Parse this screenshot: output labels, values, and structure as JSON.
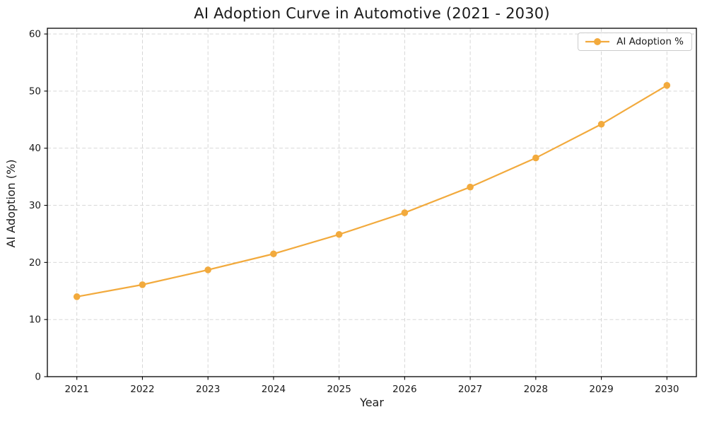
{
  "chart_data": {
    "type": "line",
    "title": "AI Adoption Curve in Automotive (2021 - 2030)",
    "xlabel": "Year",
    "ylabel": "AI Adoption (%)",
    "x": [
      2021,
      2022,
      2023,
      2024,
      2025,
      2026,
      2027,
      2028,
      2029,
      2030
    ],
    "series": [
      {
        "name": "AI Adoption %",
        "values": [
          14.0,
          16.1,
          18.7,
          21.5,
          24.9,
          28.7,
          33.2,
          38.3,
          44.2,
          51.0
        ],
        "color": "#F2AA3D",
        "marker": "circle"
      }
    ],
    "legend": [
      "AI Adoption %"
    ],
    "legend_position": "upper right",
    "ylim": [
      0,
      61
    ],
    "yticks": [
      0,
      10,
      20,
      30,
      40,
      50,
      60
    ],
    "grid": true,
    "grid_style": "dashed",
    "grid_color": "#d2d2d2",
    "axis_color": "#000000",
    "tick_label_color": "#1a1a1a",
    "background_color": "#ffffff"
  }
}
